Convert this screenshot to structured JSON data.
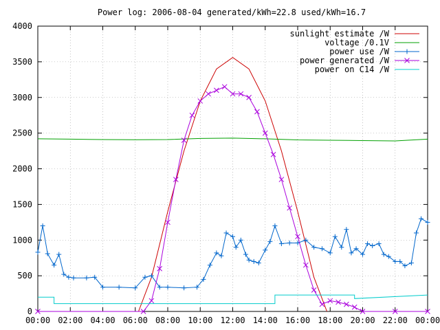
{
  "chart_data": {
    "type": "line",
    "title": "Power log: 2006-08-04 generated/kWh=22.8 used/kWh=16.7",
    "xlabel": "",
    "ylabel": "",
    "xlim": [
      "00:00",
      "24:00"
    ],
    "ylim": [
      0,
      4000
    ],
    "x_ticks": [
      "00:00",
      "02:00",
      "04:00",
      "06:00",
      "08:00",
      "10:00",
      "12:00",
      "14:00",
      "16:00",
      "18:00",
      "20:00",
      "22:00",
      "00:00"
    ],
    "y_ticks": [
      0,
      500,
      1000,
      1500,
      2000,
      2500,
      3000,
      3500,
      4000
    ],
    "grid": true,
    "legend_position": "top-right",
    "series": [
      {
        "name": "sunlight estimate /W",
        "color": "#cc0000",
        "marker": "none",
        "x": [
          6.2,
          7,
          8,
          9,
          10,
          11,
          12,
          13,
          14,
          15,
          16,
          17,
          17.8
        ],
        "y": [
          0,
          480,
          1400,
          2250,
          2950,
          3400,
          3560,
          3400,
          2950,
          2250,
          1400,
          480,
          0
        ]
      },
      {
        "name": "voltage /0.1V",
        "color": "#00a000",
        "marker": "none",
        "x": [
          0,
          2,
          4,
          6,
          8,
          10,
          12,
          14,
          16,
          18,
          20,
          22,
          24
        ],
        "y": [
          2420,
          2415,
          2410,
          2408,
          2410,
          2425,
          2430,
          2420,
          2405,
          2400,
          2395,
          2390,
          2415
        ]
      },
      {
        "name": "power use /W",
        "color": "#0066cc",
        "marker": "plus",
        "x": [
          0,
          0.3,
          0.6,
          1.0,
          1.3,
          1.6,
          1.9,
          2.2,
          3.0,
          3.5,
          4.0,
          5.0,
          6.0,
          6.6,
          7.0,
          7.5,
          8.0,
          9.0,
          9.8,
          10.2,
          10.6,
          11.0,
          11.3,
          11.6,
          12.0,
          12.2,
          12.5,
          12.8,
          13.0,
          13.3,
          13.6,
          14.0,
          14.3,
          14.6,
          15.0,
          15.5,
          16.0,
          16.5,
          17.0,
          17.5,
          18.0,
          18.3,
          18.7,
          19.0,
          19.3,
          19.6,
          20.0,
          20.3,
          20.6,
          21.0,
          21.3,
          21.6,
          22.0,
          22.3,
          22.6,
          23.0,
          23.3,
          23.6,
          24.0
        ],
        "y": [
          830,
          1200,
          810,
          650,
          800,
          520,
          480,
          470,
          470,
          480,
          340,
          340,
          330,
          480,
          500,
          340,
          340,
          330,
          340,
          450,
          650,
          820,
          780,
          1100,
          1050,
          900,
          1000,
          800,
          720,
          700,
          680,
          860,
          980,
          1200,
          950,
          960,
          960,
          1000,
          900,
          880,
          820,
          1050,
          900,
          1150,
          820,
          880,
          800,
          950,
          920,
          950,
          800,
          770,
          700,
          700,
          640,
          680,
          1100,
          1300,
          1250
        ]
      },
      {
        "name": "power generated /W",
        "color": "#aa00dd",
        "marker": "cross",
        "x": [
          0,
          6.5,
          7.0,
          7.5,
          8.0,
          8.5,
          9.0,
          9.5,
          10.0,
          10.5,
          11.0,
          11.5,
          12.0,
          12.5,
          13.0,
          13.5,
          14.0,
          14.5,
          15.0,
          15.5,
          16.0,
          16.5,
          17.0,
          17.5,
          18.0,
          18.5,
          19.0,
          19.5,
          20.0,
          22.0,
          24.0
        ],
        "y": [
          0,
          0,
          150,
          600,
          1250,
          1850,
          2400,
          2750,
          2950,
          3050,
          3100,
          3150,
          3050,
          3050,
          3000,
          2800,
          2500,
          2200,
          1850,
          1450,
          1050,
          650,
          300,
          100,
          150,
          130,
          100,
          60,
          0,
          0,
          0
        ]
      },
      {
        "name": "power on C14 /W",
        "color": "#00cccc",
        "marker": "none",
        "x": [
          0,
          1.0,
          1.0,
          14.6,
          14.6,
          19.5,
          19.5,
          24.0
        ],
        "y": [
          200,
          200,
          110,
          110,
          230,
          230,
          180,
          230
        ]
      }
    ]
  }
}
